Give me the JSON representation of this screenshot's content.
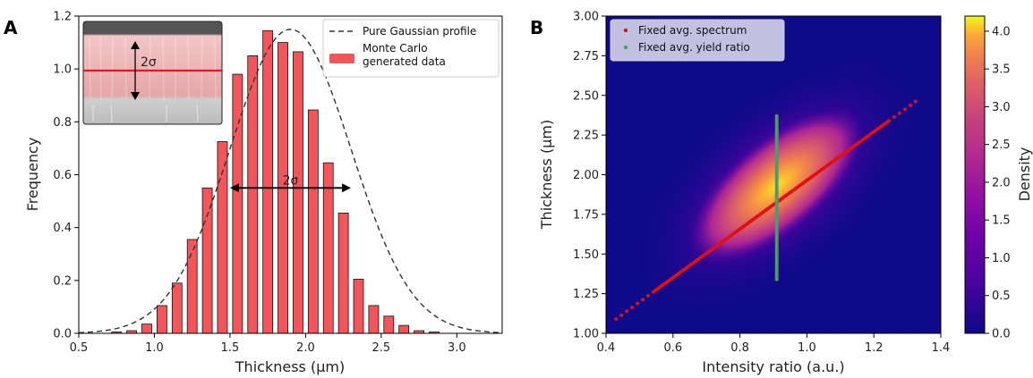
{
  "panels": {
    "a": "A",
    "b": "B"
  },
  "colors": {
    "bar": "#f4555a",
    "gaussian": "#333333",
    "scatter_spectrum": "#e01010",
    "scatter_yield": "#4e9a6a"
  },
  "chart_data": [
    {
      "type": "bar",
      "xlabel": "Thickness (µm)",
      "ylabel": "Frequency",
      "xlim": [
        0.5,
        3.3
      ],
      "ylim": [
        0,
        1.2
      ],
      "xticks": [
        0.5,
        1.0,
        1.5,
        2.0,
        2.5,
        3.0
      ],
      "yticks": [
        0.0,
        0.2,
        0.4,
        0.6,
        0.8,
        1.0,
        1.2
      ],
      "bar_width": 0.065,
      "x": [
        0.65,
        0.75,
        0.85,
        0.95,
        1.05,
        1.15,
        1.25,
        1.35,
        1.45,
        1.55,
        1.65,
        1.75,
        1.85,
        1.95,
        2.05,
        2.15,
        2.25,
        2.35,
        2.45,
        2.55,
        2.65,
        2.75,
        2.85,
        2.95,
        3.05
      ],
      "values": [
        0.0,
        0.005,
        0.01,
        0.035,
        0.105,
        0.19,
        0.355,
        0.55,
        0.725,
        0.98,
        1.05,
        1.145,
        1.1,
        1.065,
        0.845,
        0.645,
        0.455,
        0.205,
        0.105,
        0.065,
        0.03,
        0.01,
        0.005,
        0.0,
        0.0
      ],
      "legend": {
        "gaussian": "Pure Gaussian profile",
        "bars_line1": "Monte Carlo",
        "bars_line2": "generated data"
      },
      "legend_position": "upper right",
      "gaussian": {
        "mean": 1.9,
        "sigma": 0.4,
        "amplitude": 1.15
      },
      "annotation": {
        "label": "2σ",
        "x_from": 1.5,
        "x_to": 2.3,
        "y": 0.55
      },
      "inset": {
        "label": "2σ",
        "position": "upper left"
      }
    },
    {
      "type": "heatmap",
      "xlabel": "Intensity ratio (a.u.)",
      "ylabel": "Thickness (µm)",
      "xlim": [
        0.4,
        1.4
      ],
      "ylim": [
        1.0,
        3.0
      ],
      "xticks": [
        0.4,
        0.6,
        0.8,
        1.0,
        1.2,
        1.4
      ],
      "yticks": [
        1.0,
        1.25,
        1.5,
        1.75,
        2.0,
        2.25,
        2.5,
        2.75,
        3.0
      ],
      "colorbar": {
        "label": "Density",
        "min": 0.0,
        "max": 4.2,
        "ticks": [
          0.0,
          0.5,
          1.0,
          1.5,
          2.0,
          2.5,
          3.0,
          3.5,
          4.0
        ]
      },
      "density_peak": {
        "x": 0.91,
        "y": 1.93
      },
      "legend_position": "upper left",
      "series": [
        {
          "name": "Fixed avg. spectrum",
          "x_range": [
            0.43,
            1.33
          ],
          "y_range": [
            1.09,
            2.47
          ]
        },
        {
          "name": "Fixed avg. yield ratio",
          "x": 0.91,
          "y_range": [
            1.34,
            2.37
          ]
        }
      ]
    }
  ]
}
